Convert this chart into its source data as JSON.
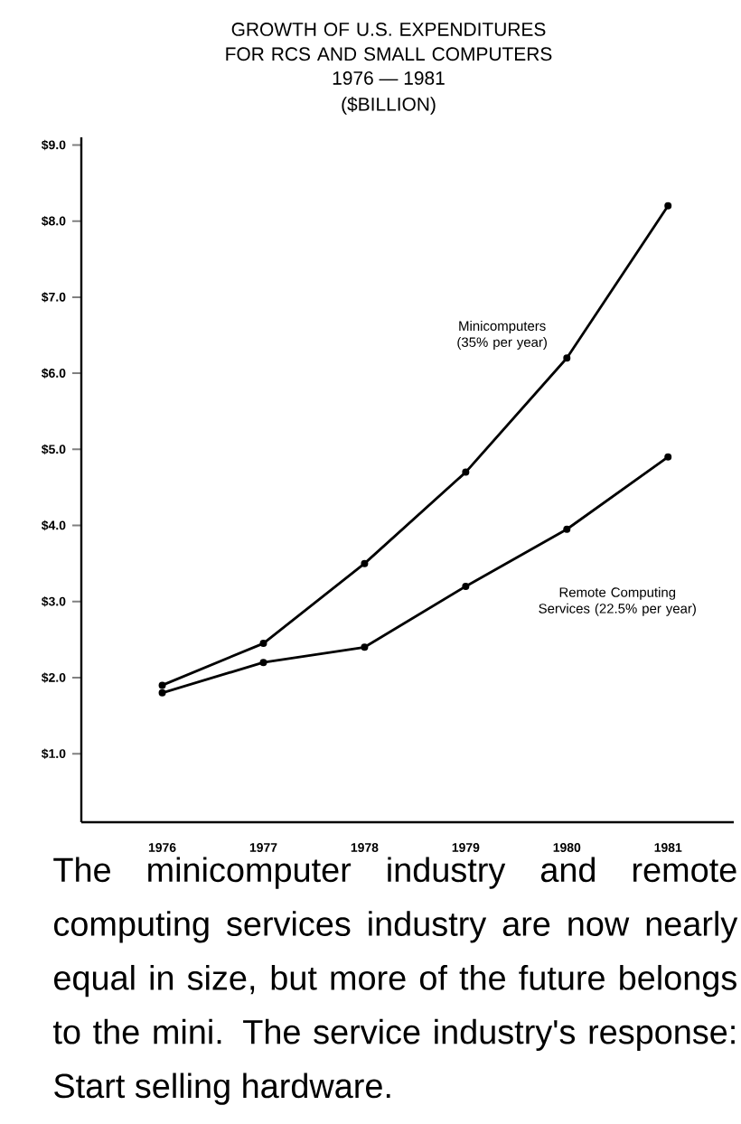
{
  "chart_data": {
    "type": "line",
    "title": "GROWTH OF U.S. EXPENDITURES FOR RCS AND SMALL COMPUTERS",
    "subtitle": "1976 — 1981",
    "ylabel": "($BILLION)",
    "x": [
      1976,
      1977,
      1978,
      1979,
      1980,
      1981
    ],
    "series": [
      {
        "name": "Minicomputers (35% per year)",
        "color": "#000000",
        "values": [
          1.9,
          2.45,
          3.5,
          4.7,
          6.2,
          8.2
        ]
      },
      {
        "name": "Remote Computing Services (22.5% per year)",
        "color": "#000000",
        "values": [
          1.8,
          2.2,
          2.4,
          3.2,
          3.95,
          4.9
        ]
      }
    ],
    "xlim": [
      1975.2,
      1981.65
    ],
    "ylim": [
      0.1,
      9.1
    ],
    "xticks": [
      1976,
      1977,
      1978,
      1979,
      1980,
      1981
    ],
    "yticks": [
      {
        "value": 1,
        "label": "$1.0"
      },
      {
        "value": 2,
        "label": "$2.0"
      },
      {
        "value": 3,
        "label": "$3.0"
      },
      {
        "value": 4,
        "label": "$4.0"
      },
      {
        "value": 5,
        "label": "$5.0"
      },
      {
        "value": 6,
        "label": "$6.0"
      },
      {
        "value": 7,
        "label": "$7.0"
      },
      {
        "value": 8,
        "label": "$8.0"
      },
      {
        "value": 9,
        "label": "$9.0"
      }
    ],
    "marker": "circle",
    "line_style": "solid",
    "annotations": [
      "The minicomputer industry and remote computing services industry are now nearly equal in size, but more of the future belongs to the mini. The service industry's response: Start selling hardware."
    ]
  }
}
